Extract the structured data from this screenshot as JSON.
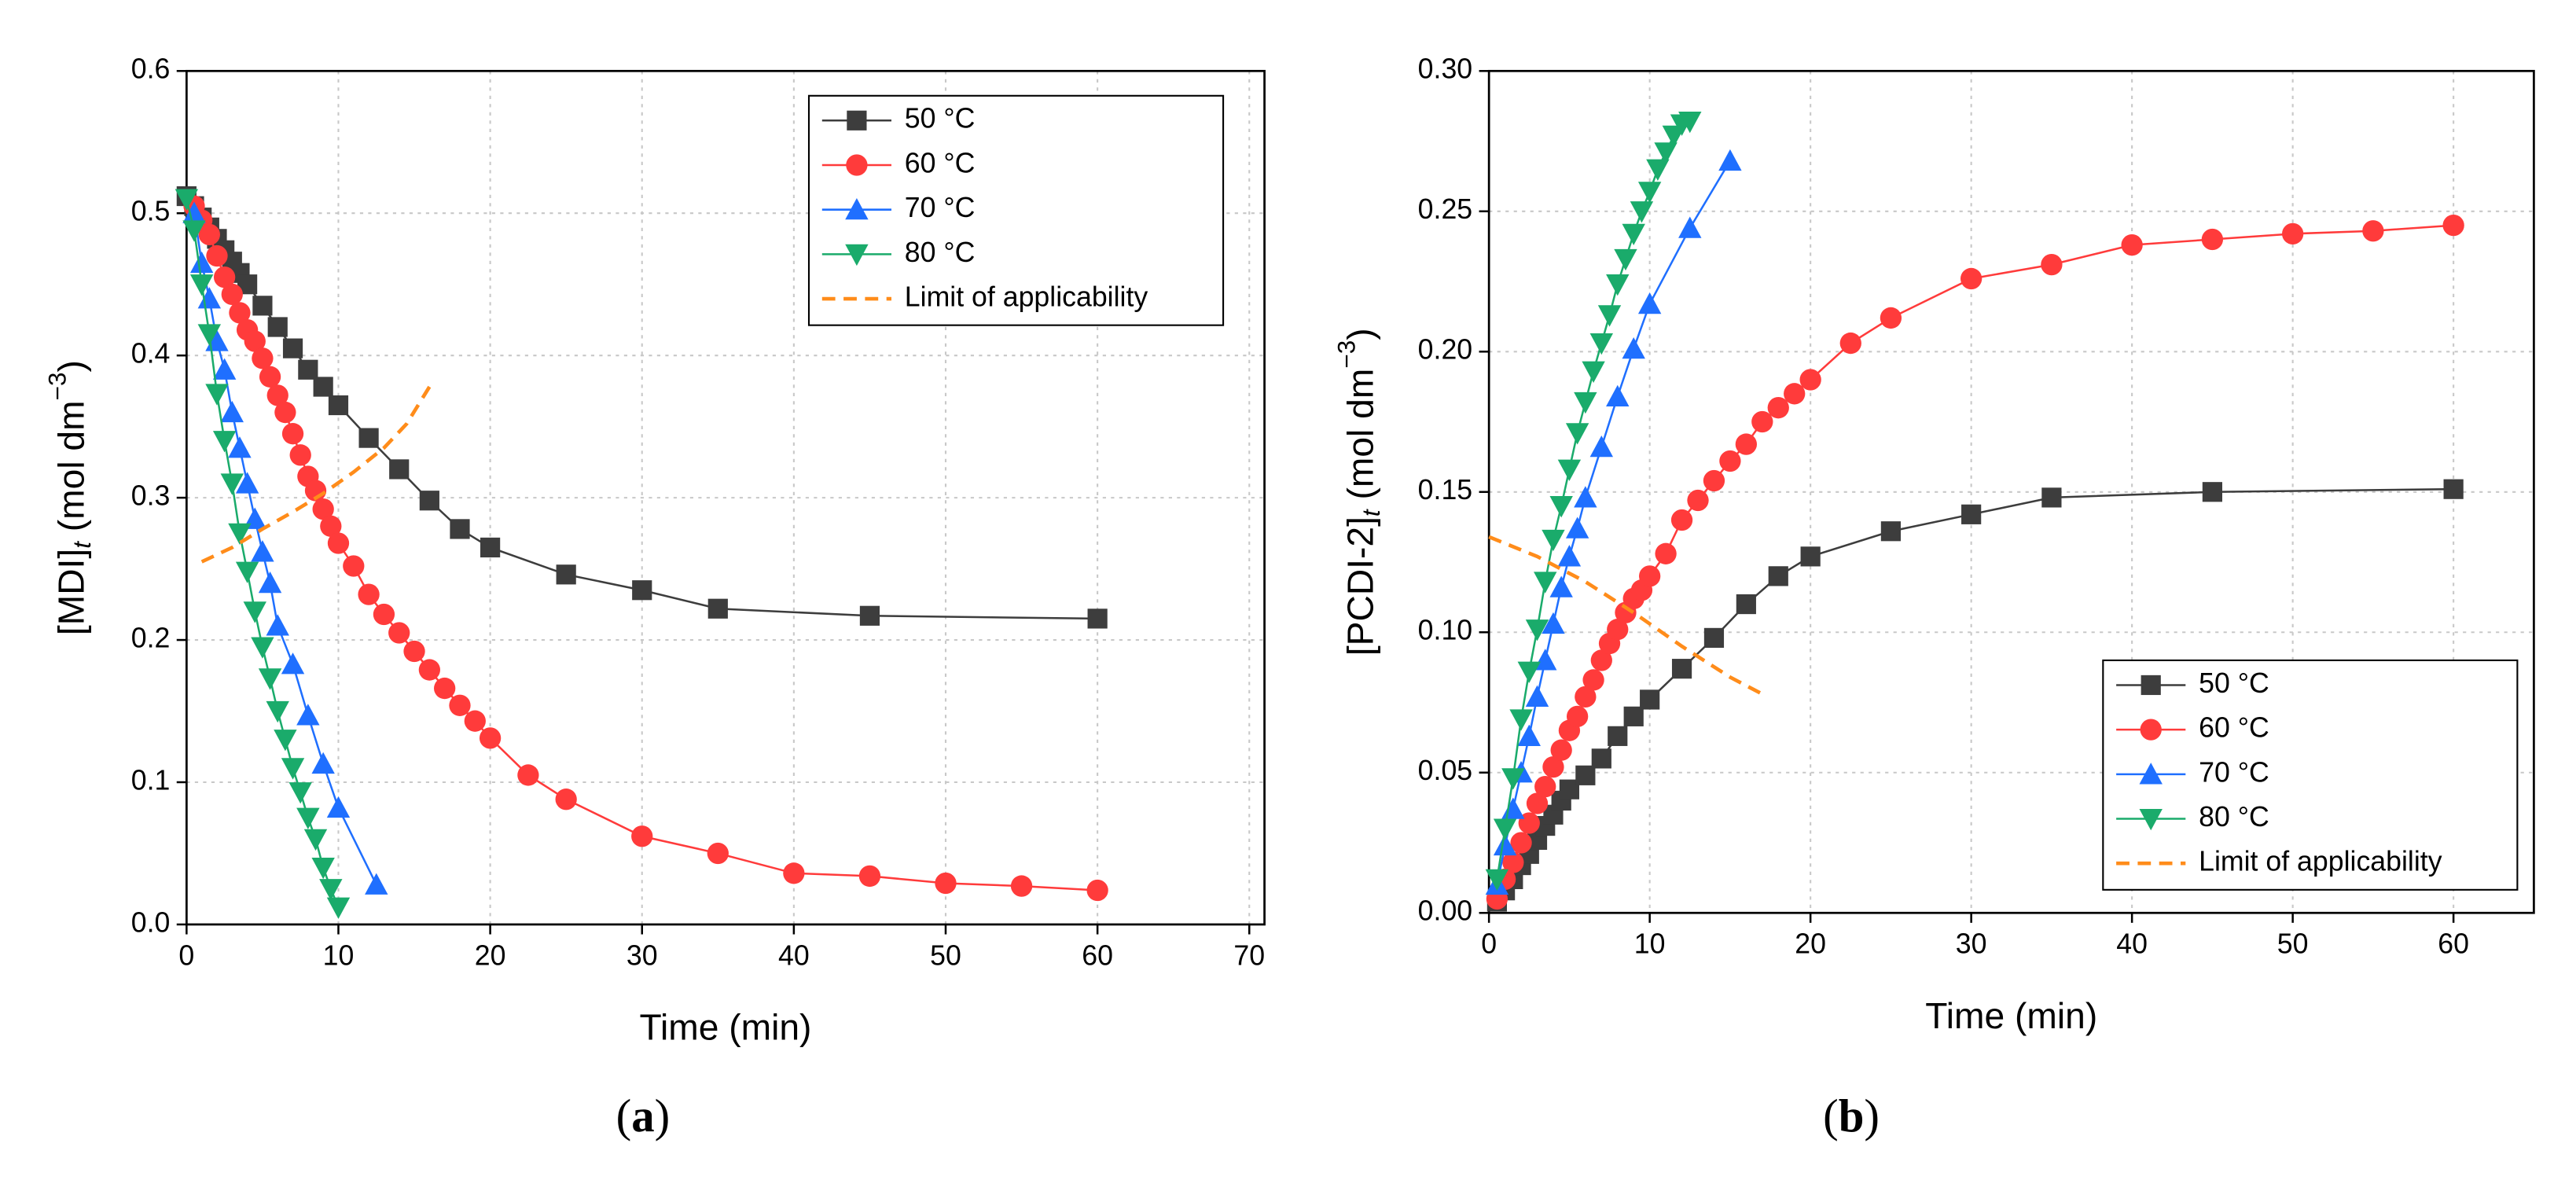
{
  "chart_data": [
    {
      "type": "line",
      "panel_label": {
        "open": "(",
        "letter": "a",
        "close": ")"
      },
      "xlabel": "Time (min)",
      "ylabel": {
        "main": "[MDI]",
        "subscript": "t",
        "unit": " (mol dm",
        "superscript": "−3",
        "close": ")"
      },
      "xlim": [
        0,
        71
      ],
      "xticks": [
        0,
        10,
        20,
        30,
        40,
        50,
        60,
        70
      ],
      "ylim": [
        0,
        0.6
      ],
      "yticks": [
        {
          "value": 0,
          "label": "0.0"
        },
        0.1,
        0.2,
        0.3,
        0.4,
        0.5,
        0.6
      ],
      "grid": true,
      "legend": "top right",
      "series": [
        {
          "name": "50 °C",
          "color": "#3d3d3d",
          "marker": "square",
          "x": [
            0,
            0.5,
            1,
            1.5,
            2,
            2.5,
            3,
            3.5,
            4,
            5,
            6,
            7,
            8,
            9,
            10,
            12,
            14,
            16,
            18,
            20,
            25,
            30,
            35,
            45,
            60
          ],
          "values": [
            0.512,
            0.505,
            0.497,
            0.49,
            0.482,
            0.474,
            0.466,
            0.458,
            0.45,
            0.435,
            0.42,
            0.405,
            0.39,
            0.378,
            0.365,
            0.342,
            0.32,
            0.298,
            0.278,
            0.265,
            0.246,
            0.235,
            0.222,
            0.217,
            0.215
          ]
        },
        {
          "name": "60 °C",
          "color": "#ff3b3b",
          "marker": "circle",
          "x": [
            0.5,
            1,
            1.5,
            2,
            2.5,
            3,
            3.5,
            4,
            4.5,
            5,
            5.5,
            6,
            6.5,
            7,
            7.5,
            8,
            8.5,
            9,
            9.5,
            10,
            11,
            12,
            13,
            14,
            15,
            16,
            17,
            18,
            19,
            20,
            22.5,
            25,
            30,
            35,
            40,
            45,
            50,
            55,
            60
          ],
          "values": [
            0.505,
            0.495,
            0.485,
            0.47,
            0.455,
            0.443,
            0.43,
            0.418,
            0.41,
            0.398,
            0.385,
            0.372,
            0.36,
            0.345,
            0.33,
            0.315,
            0.305,
            0.292,
            0.28,
            0.268,
            0.252,
            0.232,
            0.218,
            0.205,
            0.192,
            0.179,
            0.166,
            0.154,
            0.143,
            0.131,
            0.105,
            0.088,
            0.062,
            0.05,
            0.036,
            0.034,
            0.029,
            0.027,
            0.024
          ]
        },
        {
          "name": "70 °C",
          "color": "#1f6fff",
          "marker": "triangle-up",
          "x": [
            0.5,
            1,
            1.5,
            2,
            2.5,
            3,
            3.5,
            4,
            4.5,
            5,
            5.5,
            6,
            7,
            8,
            9,
            10,
            12.5
          ],
          "values": [
            0.5,
            0.465,
            0.44,
            0.41,
            0.39,
            0.36,
            0.335,
            0.31,
            0.285,
            0.262,
            0.24,
            0.21,
            0.183,
            0.147,
            0.113,
            0.082,
            0.028
          ]
        },
        {
          "name": "80 °C",
          "color": "#1aab6b",
          "marker": "triangle-down",
          "x": [
            0,
            0.5,
            1,
            1.5,
            2,
            2.5,
            3,
            3.5,
            4,
            4.5,
            5,
            5.5,
            6,
            6.5,
            7,
            7.5,
            8,
            8.5,
            9,
            9.5,
            10
          ],
          "values": [
            0.51,
            0.488,
            0.45,
            0.415,
            0.373,
            0.34,
            0.31,
            0.275,
            0.248,
            0.22,
            0.195,
            0.173,
            0.15,
            0.13,
            0.11,
            0.093,
            0.075,
            0.06,
            0.04,
            0.025,
            0.012
          ]
        },
        {
          "name": "Limit of applicability",
          "color": "#ff8c1a",
          "marker": "none",
          "dashed": true,
          "x": [
            1,
            3,
            5,
            7,
            9,
            11,
            13,
            14.5,
            16
          ],
          "values": [
            0.255,
            0.265,
            0.278,
            0.29,
            0.303,
            0.318,
            0.335,
            0.352,
            0.378
          ]
        }
      ]
    },
    {
      "type": "line",
      "panel_label": {
        "open": "(",
        "letter": "b",
        "close": ")"
      },
      "xlabel": "Time (min)",
      "ylabel": {
        "main": "[PCDI-2]",
        "subscript": "t",
        "unit": " (mol dm",
        "superscript": "−3",
        "close": ")"
      },
      "xlim": [
        0,
        65
      ],
      "xticks": [
        0,
        10,
        20,
        30,
        40,
        50,
        60
      ],
      "ylim": [
        0,
        0.3
      ],
      "yticks": [
        {
          "value": 0,
          "label": "0.00"
        },
        0.05,
        {
          "value": 0.1,
          "label": "0.10"
        },
        0.15,
        {
          "value": 0.2,
          "label": "0.20"
        },
        0.25,
        {
          "value": 0.3,
          "label": "0.30"
        }
      ],
      "grid": true,
      "legend": "bottom right",
      "series": [
        {
          "name": "50 °C",
          "color": "#3d3d3d",
          "marker": "square",
          "x": [
            0.5,
            1,
            1.5,
            2,
            2.5,
            3,
            3.5,
            4,
            4.5,
            5,
            6,
            7,
            8,
            9,
            10,
            12,
            14,
            16,
            18,
            20,
            25,
            30,
            35,
            45,
            60
          ],
          "values": [
            0.004,
            0.008,
            0.012,
            0.017,
            0.021,
            0.026,
            0.031,
            0.035,
            0.04,
            0.044,
            0.049,
            0.055,
            0.063,
            0.07,
            0.076,
            0.087,
            0.098,
            0.11,
            0.12,
            0.127,
            0.136,
            0.142,
            0.148,
            0.15,
            0.151
          ]
        },
        {
          "name": "60 °C",
          "color": "#ff3b3b",
          "marker": "circle",
          "x": [
            0.5,
            1,
            1.5,
            2,
            2.5,
            3,
            3.5,
            4,
            4.5,
            5,
            5.5,
            6,
            6.5,
            7,
            7.5,
            8,
            8.5,
            9,
            9.5,
            10,
            11,
            12,
            13,
            14,
            15,
            16,
            17,
            18,
            19,
            20,
            22.5,
            25,
            30,
            35,
            40,
            45,
            50,
            55,
            60
          ],
          "values": [
            0.005,
            0.012,
            0.018,
            0.025,
            0.032,
            0.039,
            0.045,
            0.052,
            0.058,
            0.065,
            0.07,
            0.077,
            0.083,
            0.09,
            0.096,
            0.101,
            0.107,
            0.112,
            0.115,
            0.12,
            0.128,
            0.14,
            0.147,
            0.154,
            0.161,
            0.167,
            0.175,
            0.18,
            0.185,
            0.19,
            0.203,
            0.212,
            0.226,
            0.231,
            0.238,
            0.24,
            0.242,
            0.243,
            0.245
          ]
        },
        {
          "name": "70 °C",
          "color": "#1f6fff",
          "marker": "triangle-up",
          "x": [
            0.5,
            1,
            1.5,
            2,
            2.5,
            3,
            3.5,
            4,
            4.5,
            5,
            5.5,
            6,
            7,
            8,
            9,
            10,
            12.5,
            15
          ],
          "values": [
            0.01,
            0.024,
            0.037,
            0.05,
            0.063,
            0.077,
            0.09,
            0.103,
            0.116,
            0.127,
            0.137,
            0.148,
            0.166,
            0.184,
            0.201,
            0.217,
            0.244,
            0.268
          ]
        },
        {
          "name": "80 °C",
          "color": "#1aab6b",
          "marker": "triangle-down",
          "x": [
            0.5,
            1,
            1.5,
            2,
            2.5,
            3,
            3.5,
            4,
            4.5,
            5,
            5.5,
            6,
            6.5,
            7,
            7.5,
            8,
            8.5,
            9,
            9.5,
            10,
            10.5,
            11,
            11.5,
            12,
            12.5
          ],
          "values": [
            0.012,
            0.03,
            0.048,
            0.069,
            0.086,
            0.101,
            0.118,
            0.133,
            0.145,
            0.158,
            0.171,
            0.182,
            0.193,
            0.203,
            0.213,
            0.224,
            0.233,
            0.242,
            0.25,
            0.257,
            0.265,
            0.271,
            0.277,
            0.281,
            0.282
          ]
        },
        {
          "name": "Limit of applicability",
          "color": "#ff8c1a",
          "marker": "none",
          "dashed": true,
          "x": [
            0,
            3,
            6,
            9,
            12,
            15,
            17
          ],
          "values": [
            0.134,
            0.127,
            0.118,
            0.107,
            0.095,
            0.084,
            0.078
          ]
        }
      ]
    }
  ]
}
